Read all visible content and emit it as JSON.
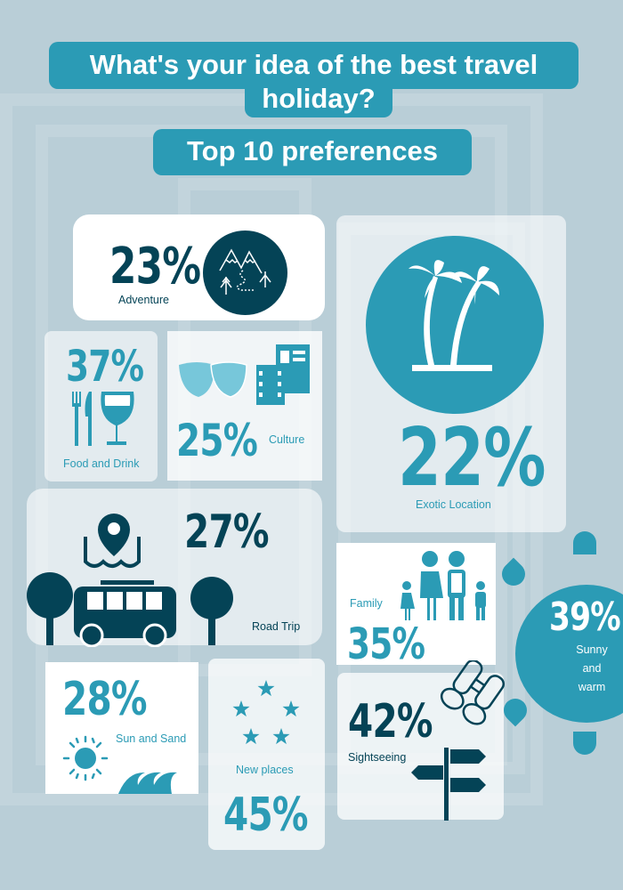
{
  "header": {
    "title_line1": "What's your idea of the best travel",
    "title_line2": "holiday?",
    "subtitle": "Top 10 preferences"
  },
  "colors": {
    "dark": "#044356",
    "teal": "#2b9bb5",
    "light_teal": "#77c7da",
    "background": "#b9ced7"
  },
  "items": {
    "adventure": {
      "value": "23%",
      "label": "Adventure",
      "icon": "mountains-trail-icon"
    },
    "exotic": {
      "value": "22%",
      "label": "Exotic Location",
      "icon": "palm-trees-icon"
    },
    "food": {
      "value": "37%",
      "label": "Food and Drink",
      "icon": "cutlery-wine-icon"
    },
    "culture": {
      "value": "25%",
      "label": "Culture",
      "icon": "theater-masks-film-icon"
    },
    "roadtrip": {
      "value": "27%",
      "label": "Road Trip",
      "icon": "van-map-pin-icon"
    },
    "family": {
      "value": "35%",
      "label": "Family",
      "icon": "family-icon"
    },
    "sunny": {
      "value": "39%",
      "label_lines": [
        "Sunny",
        "and",
        "warm"
      ],
      "icon": "sun-icon"
    },
    "sunsand": {
      "value": "28%",
      "label": "Sun and Sand",
      "icon": "sun-waves-icon"
    },
    "newplaces": {
      "value": "45%",
      "label": "New places",
      "icon": "stars-icon"
    },
    "sightseeing": {
      "value": "42%",
      "label": "Sightseeing",
      "icon": "binoculars-signpost-icon"
    }
  }
}
